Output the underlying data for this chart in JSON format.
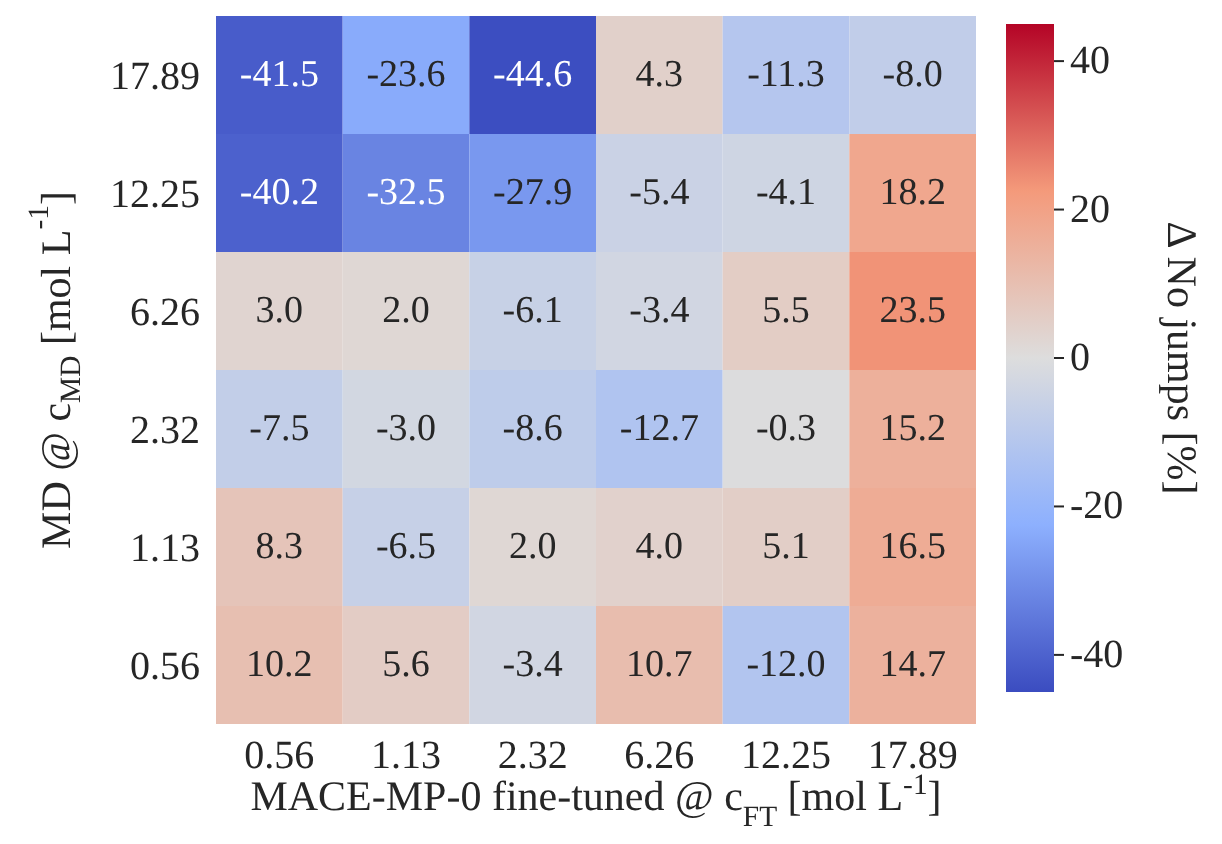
{
  "chart_data": {
    "type": "heatmap",
    "xlabel": "MACE-MP-0 fine-tuned @ c$_{FT}$ [mol L$^{-1}$]",
    "ylabel": "MD @ c$_{MD}$ [mol L$^{-1}$]",
    "clabel": "Δ No jumps [%]",
    "categories": [
      "0.56",
      "1.13",
      "2.32",
      "6.26",
      "12.25",
      "17.89"
    ],
    "y_categories": [
      "17.89",
      "12.25",
      "6.26",
      "2.32",
      "1.13",
      "0.56"
    ],
    "cells": [
      [
        -41.5,
        -23.6,
        -44.6,
        4.3,
        -11.3,
        -8.0
      ],
      [
        -40.2,
        -32.5,
        -27.9,
        -5.4,
        -4.1,
        18.2
      ],
      [
        3.0,
        2.0,
        -6.1,
        -3.4,
        5.5,
        23.5
      ],
      [
        -7.5,
        -3.0,
        -8.6,
        -12.7,
        -0.3,
        15.2
      ],
      [
        8.3,
        -6.5,
        2.0,
        4.0,
        5.1,
        16.5
      ],
      [
        10.2,
        5.6,
        -3.4,
        10.7,
        -12.0,
        14.7
      ]
    ],
    "cell_labels": [
      [
        "-41.5",
        "-23.6",
        "-44.6",
        "4.3",
        "-11.3",
        "-8.0"
      ],
      [
        "-40.2",
        "-32.5",
        "-27.9",
        "-5.4",
        "-4.1",
        "18.2"
      ],
      [
        "3.0",
        "2.0",
        "-6.1",
        "-3.4",
        "5.5",
        "23.5"
      ],
      [
        "-7.5",
        "-3.0",
        "-8.6",
        "-12.7",
        "-0.3",
        "15.2"
      ],
      [
        "8.3",
        "-6.5",
        "2.0",
        "4.0",
        "5.1",
        "16.5"
      ],
      [
        "10.2",
        "5.6",
        "-3.4",
        "10.7",
        "-12.0",
        "14.7"
      ]
    ],
    "clim": [
      -45,
      45
    ],
    "cticks": [
      -40,
      -20,
      0,
      20,
      40
    ]
  }
}
